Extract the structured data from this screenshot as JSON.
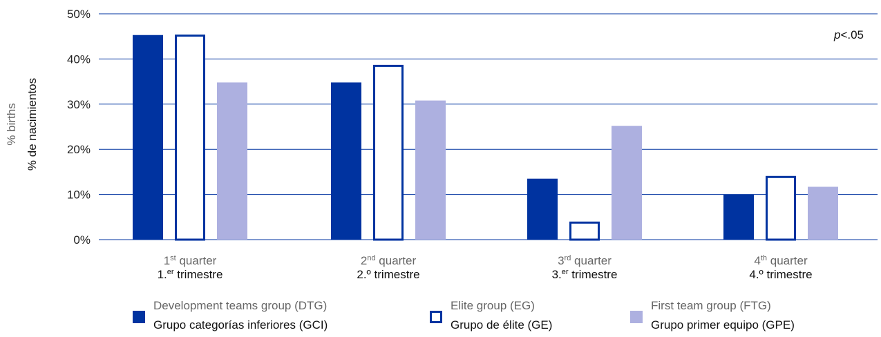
{
  "chart_data": {
    "type": "bar",
    "ylabel_en": "% births",
    "ylabel_es": "% de nacimientos",
    "yticks": [
      "0%",
      "10%",
      "20%",
      "30%",
      "40%",
      "50%"
    ],
    "ylim": [
      0,
      50
    ],
    "annotation": {
      "italic": "p",
      "rest": "<.05"
    },
    "categories": [
      {
        "en_num": "1",
        "en_sup": "st",
        "en_word": " quarter",
        "es_num": "1.",
        "es_sup": "er",
        "es_word": " trimestre"
      },
      {
        "en_num": "2",
        "en_sup": "nd",
        "en_word": " quarter",
        "es_num": "2.º",
        "es_sup": "",
        "es_word": " trimestre"
      },
      {
        "en_num": "3",
        "en_sup": "rd",
        "en_word": " quarter",
        "es_num": "3.",
        "es_sup": "er",
        "es_word": " trimestre"
      },
      {
        "en_num": "4",
        "en_sup": "th",
        "en_word": " quarter",
        "es_num": "4.º",
        "es_sup": "",
        "es_word": " trimestre"
      }
    ],
    "series": [
      {
        "name_en": "Development teams group (DTG)",
        "name_es": "Grupo categorías inferiores (GCI)",
        "style": "filled",
        "color": "#0033a0",
        "values": [
          45.3,
          34.8,
          13.5,
          10.0
        ]
      },
      {
        "name_en": "Elite group (EG)",
        "name_es": "Grupo de élite (GE)",
        "style": "outline",
        "color": "#0033a0",
        "values": [
          45.4,
          38.7,
          4.0,
          14.1
        ]
      },
      {
        "name_en": "First team group (FTG)",
        "name_es": "Grupo primer equipo (GPE)",
        "style": "filled",
        "color": "#adb0e0",
        "values": [
          34.8,
          30.8,
          25.2,
          11.7
        ]
      }
    ],
    "grid": true,
    "legend_position": "bottom"
  }
}
